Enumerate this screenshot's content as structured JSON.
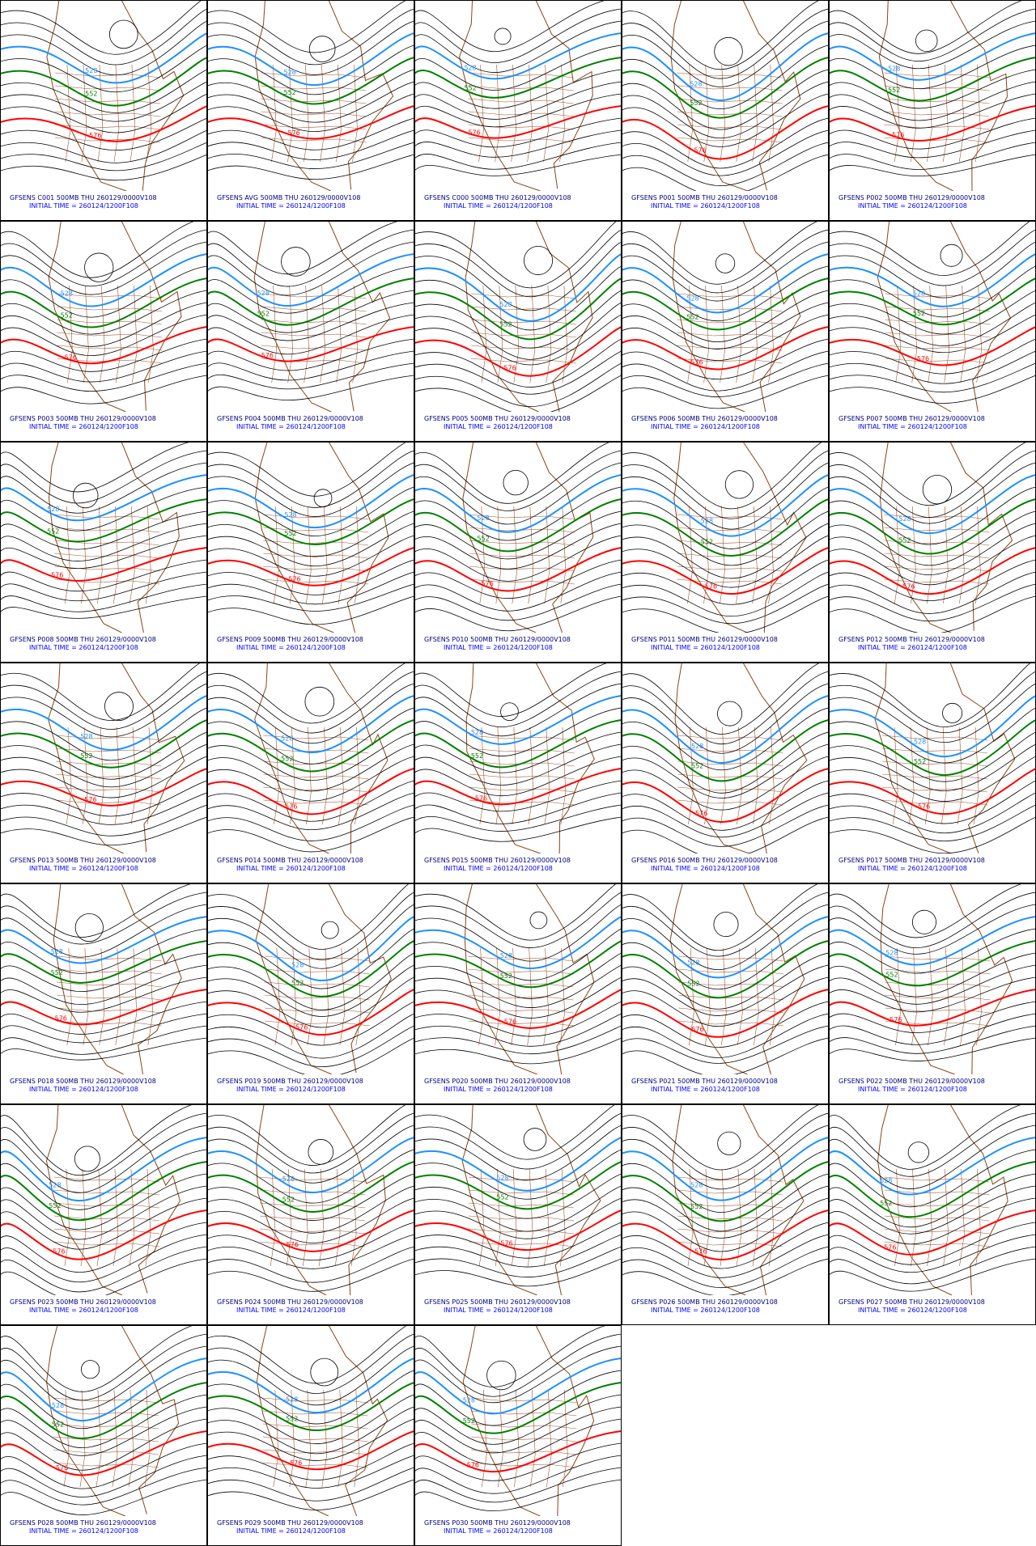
{
  "panels": [
    {
      "title": "GFSENS C001 500MB THU 260129/0000V108",
      "initial_time": "INITIAL TIME = 260124/1200F108",
      "contour_labels": [
        "528",
        "552",
        "576"
      ]
    },
    {
      "title": "GFSENS AVG 500MB THU 260129/0000V108",
      "initial_time": "INITIAL TIME = 260124/1200F108",
      "contour_labels": [
        "528",
        "552",
        "576"
      ]
    },
    {
      "title": "GFSENS C000 500MB THU 260129/0000V108",
      "initial_time": "INITIAL TIME = 260124/1200F108",
      "contour_labels": [
        "528",
        "552",
        "576"
      ]
    },
    {
      "title": "GFSENS P001 500MB THU 260129/0000V108",
      "initial_time": "INITIAL TIME = 260124/1200F108",
      "contour_labels": [
        "528",
        "552",
        "576"
      ]
    },
    {
      "title": "GFSENS P002 500MB THU 260129/0000V108",
      "initial_time": "INITIAL TIME = 260124/1200F108",
      "contour_labels": [
        "528",
        "552",
        "576"
      ]
    },
    {
      "title": "GFSENS P003 500MB THU 260129/0000V108",
      "initial_time": "INITIAL TIME = 260124/1200F108",
      "contour_labels": [
        "528",
        "552",
        "576"
      ]
    },
    {
      "title": "GFSENS P004 500MB THU 260129/0000V108",
      "initial_time": "INITIAL TIME = 260124/1200F108",
      "contour_labels": [
        "528",
        "552",
        "576"
      ]
    },
    {
      "title": "GFSENS P005 500MB THU 260129/0000V108",
      "initial_time": "INITIAL TIME = 260124/1200F108",
      "contour_labels": [
        "528",
        "552",
        "576"
      ]
    },
    {
      "title": "GFSENS P006 500MB THU 260129/0000V108",
      "initial_time": "INITIAL TIME = 260124/1200F108",
      "contour_labels": [
        "528",
        "552",
        "576"
      ]
    },
    {
      "title": "GFSENS P007 500MB THU 260129/0000V108",
      "initial_time": "INITIAL TIME = 260124/1200F108",
      "contour_labels": [
        "528",
        "552",
        "576"
      ]
    },
    {
      "title": "GFSENS P008 500MB THU 260129/0000V108",
      "initial_time": "INITIAL TIME = 260124/1200F108",
      "contour_labels": [
        "528",
        "552",
        "576"
      ]
    },
    {
      "title": "GFSENS P009 500MB THU 260129/0000V108",
      "initial_time": "INITIAL TIME = 260124/1200F108",
      "contour_labels": [
        "528",
        "552",
        "576"
      ]
    },
    {
      "title": "GFSENS P010 500MB THU 260129/0000V108",
      "initial_time": "INITIAL TIME = 260124/1200F108",
      "contour_labels": [
        "528",
        "552",
        "576"
      ]
    },
    {
      "title": "GFSENS P011 500MB THU 260129/0000V108",
      "initial_time": "INITIAL TIME = 260124/1200F108",
      "contour_labels": [
        "528",
        "552",
        "576"
      ]
    },
    {
      "title": "GFSENS P012 500MB THU 260129/0000V108",
      "initial_time": "INITIAL TIME = 260124/1200F108",
      "contour_labels": [
        "528",
        "552",
        "576"
      ]
    },
    {
      "title": "GFSENS P013 500MB THU 260129/0000V108",
      "initial_time": "INITIAL TIME = 260124/1200F108",
      "contour_labels": [
        "528",
        "552",
        "576"
      ]
    },
    {
      "title": "GFSENS P014 500MB THU 260129/0000V108",
      "initial_time": "INITIAL TIME = 260124/1200F108",
      "contour_labels": [
        "528",
        "552",
        "576"
      ]
    },
    {
      "title": "GFSENS P015 500MB THU 260129/0000V108",
      "initial_time": "INITIAL TIME = 260124/1200F108",
      "contour_labels": [
        "528",
        "552",
        "576"
      ]
    },
    {
      "title": "GFSENS P016 500MB THU 260129/0000V108",
      "initial_time": "INITIAL TIME = 260124/1200F108",
      "contour_labels": [
        "528",
        "552",
        "576"
      ]
    },
    {
      "title": "GFSENS P017 500MB THU 260129/0000V108",
      "initial_time": "INITIAL TIME = 260124/1200F108",
      "contour_labels": [
        "528",
        "552",
        "576"
      ]
    },
    {
      "title": "GFSENS P018 500MB THU 260129/0000V108",
      "initial_time": "INITIAL TIME = 260124/1200F108",
      "contour_labels": [
        "528",
        "552",
        "576"
      ]
    },
    {
      "title": "GFSENS P019 500MB THU 260129/0000V108",
      "initial_time": "INITIAL TIME = 260124/1200F108",
      "contour_labels": [
        "528",
        "552",
        "576"
      ]
    },
    {
      "title": "GFSENS P020 500MB THU 260129/0000V108",
      "initial_time": "INITIAL TIME = 260124/1200F108",
      "contour_labels": [
        "528",
        "552",
        "576"
      ]
    },
    {
      "title": "GFSENS P021 500MB THU 260129/0000V108",
      "initial_time": "INITIAL TIME = 260124/1200F108",
      "contour_labels": [
        "528",
        "552",
        "576"
      ]
    },
    {
      "title": "GFSENS P022 500MB THU 260129/0000V108",
      "initial_time": "INITIAL TIME = 260124/1200F108",
      "contour_labels": [
        "528",
        "552",
        "576"
      ]
    },
    {
      "title": "GFSENS P023 500MB THU 260129/0000V108",
      "initial_time": "INITIAL TIME = 260124/1200F108",
      "contour_labels": [
        "528",
        "552",
        "576"
      ]
    },
    {
      "title": "GFSENS P024 500MB THU 260129/0000V108",
      "initial_time": "INITIAL TIME = 260124/1200F108",
      "contour_labels": [
        "528",
        "552",
        "576"
      ]
    },
    {
      "title": "GFSENS P025 500MB THU 260129/0000V108",
      "initial_time": "INITIAL TIME = 260124/1200F108",
      "contour_labels": [
        "528",
        "552",
        "576"
      ]
    },
    {
      "title": "GFSENS P026 500MB THU 260129/0000V108",
      "initial_time": "INITIAL TIME = 260124/1200F108",
      "contour_labels": [
        "528",
        "552",
        "576"
      ]
    },
    {
      "title": "GFSENS P027 500MB THU 260129/0000V108",
      "initial_time": "INITIAL TIME = 260124/1200F108",
      "contour_labels": [
        "528",
        "552",
        "576"
      ]
    },
    {
      "title": "GFSENS P028 500MB THU 260129/0000V108",
      "initial_time": "INITIAL TIME = 260124/1200F108",
      "contour_labels": [
        "528",
        "552",
        "576"
      ]
    },
    {
      "title": "GFSENS P029 500MB THU 260129/0000V108",
      "initial_time": "INITIAL TIME = 260124/1200F108",
      "contour_labels": [
        "528",
        "552",
        "576"
      ]
    },
    {
      "title": "GFSENS P030 500MB THU 260129/0000V108",
      "initial_time": "INITIAL TIME = 260124/1200F108",
      "contour_labels": [
        "528",
        "552",
        "576"
      ]
    }
  ]
}
